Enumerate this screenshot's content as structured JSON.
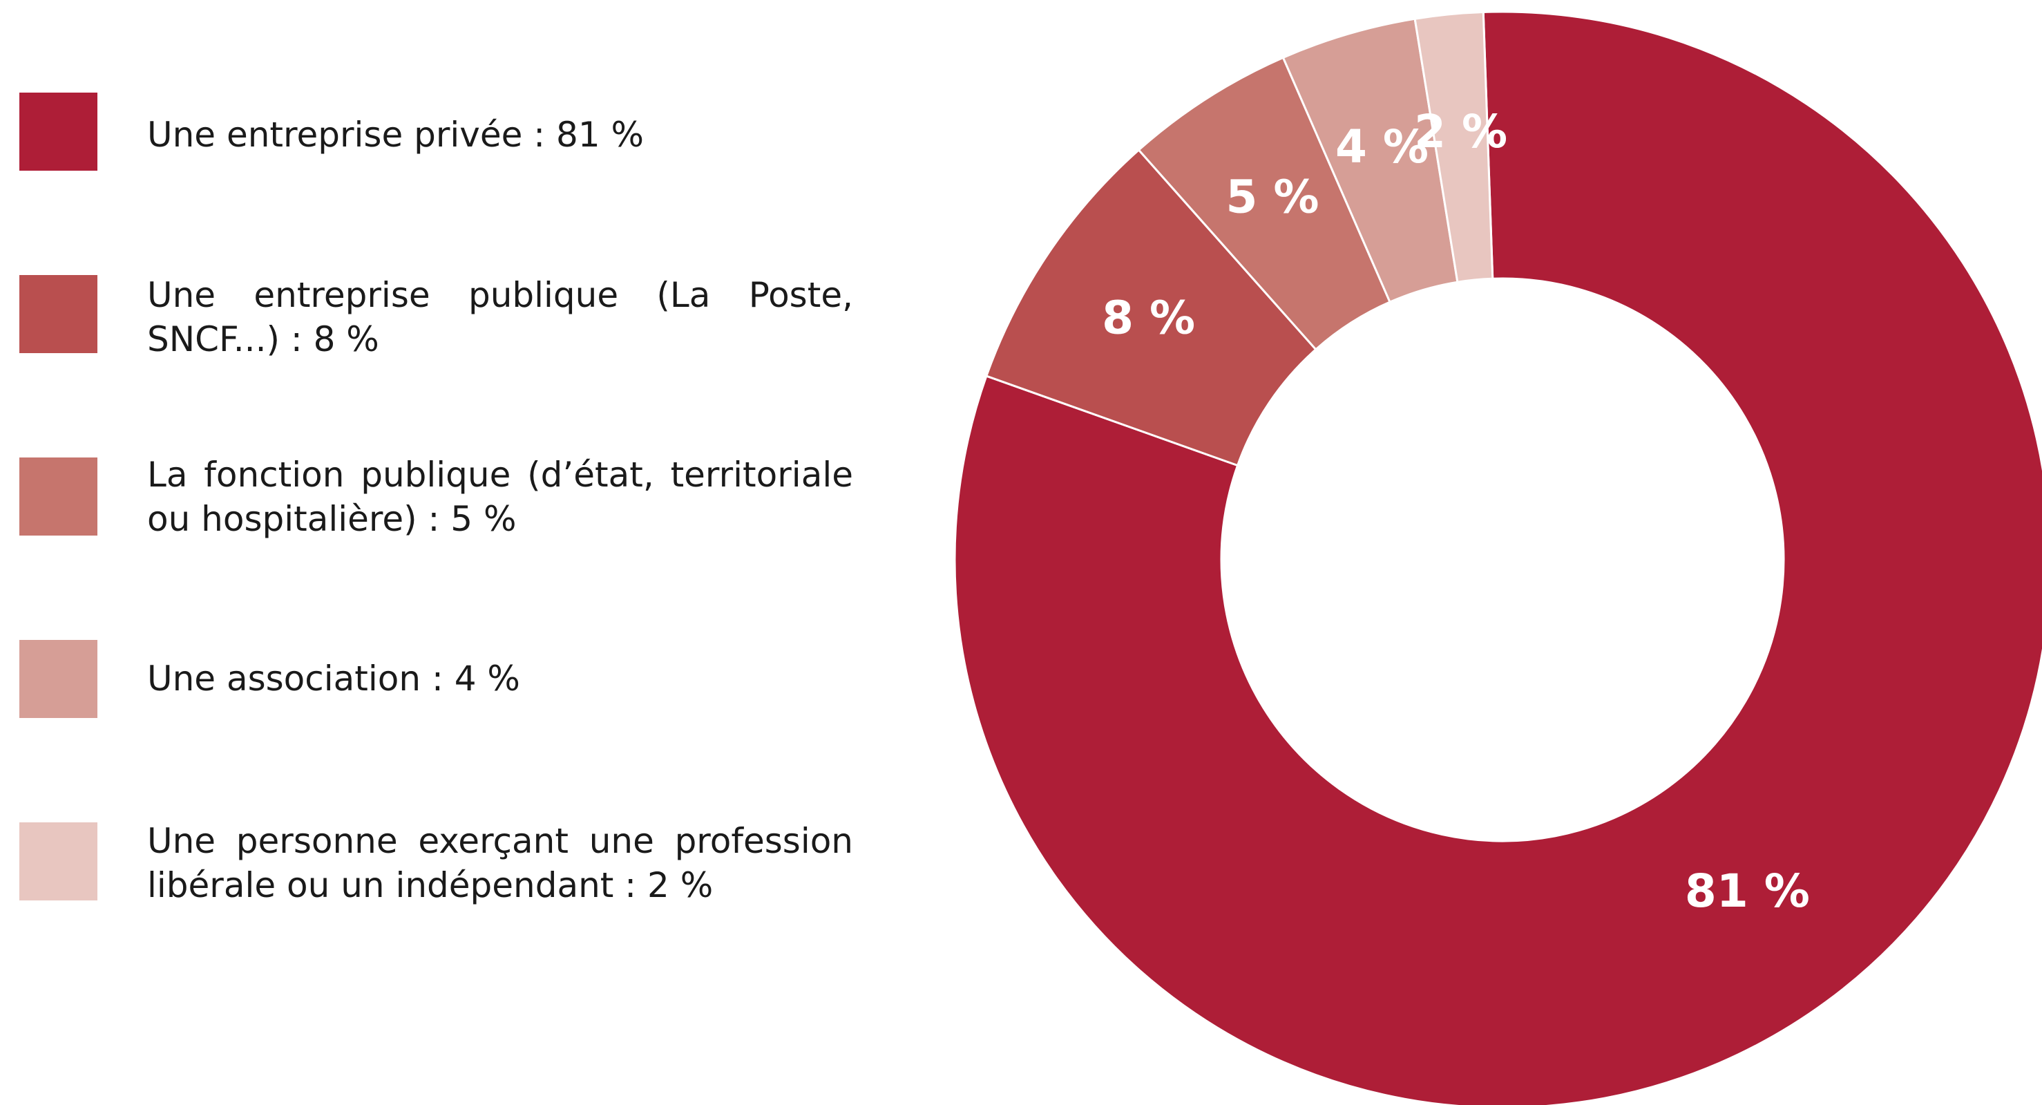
{
  "chart_data": {
    "type": "donut",
    "categories": [
      "Une entreprise privée : 81 %",
      "Une entreprise publique (La Poste, SNCF...) : 8 %",
      "La fonction publique (d’état, territoriale ou hospitalière) : 5 %",
      "Une association : 4 %",
      "Une personne exerçant une profession libérale ou un indépendant : 2 %"
    ],
    "values": [
      81,
      8,
      5,
      4,
      2
    ],
    "value_labels": [
      "81 %",
      "8 %",
      "5 %",
      "4 %",
      "2 %"
    ],
    "colors": [
      "#ae1e37",
      "#b94f4f",
      "#c6756d",
      "#d69e96",
      "#e8c6c0"
    ],
    "legend": "left"
  }
}
